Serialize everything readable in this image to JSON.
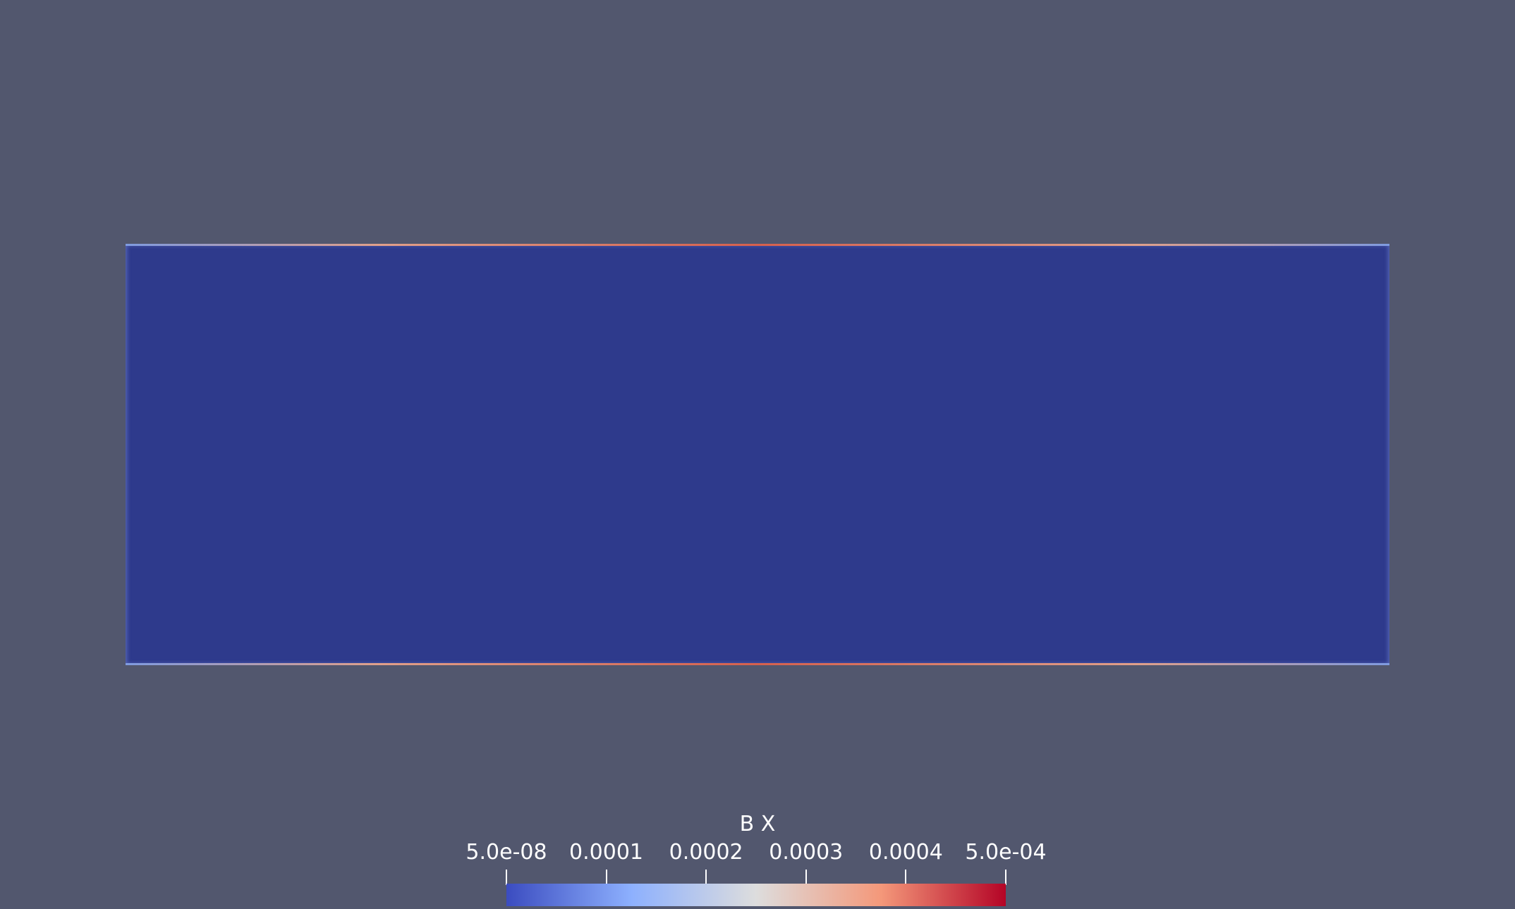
{
  "colorbar": {
    "title": "B X",
    "range": [
      5e-08,
      0.0005
    ],
    "tick_labels": [
      "5.0e-08",
      "0.0001",
      "0.0002",
      "0.0003",
      "0.0004",
      "5.0e-04"
    ],
    "tick_values": [
      5e-08,
      0.0001,
      0.0002,
      0.0003,
      0.0004,
      0.0005
    ],
    "colormap": [
      "#3b4cc0",
      "#8db0fe",
      "#dddddd",
      "#f4987a",
      "#b40426"
    ]
  },
  "colors": {
    "background": "#52576e",
    "field": "#2e3a8c"
  }
}
